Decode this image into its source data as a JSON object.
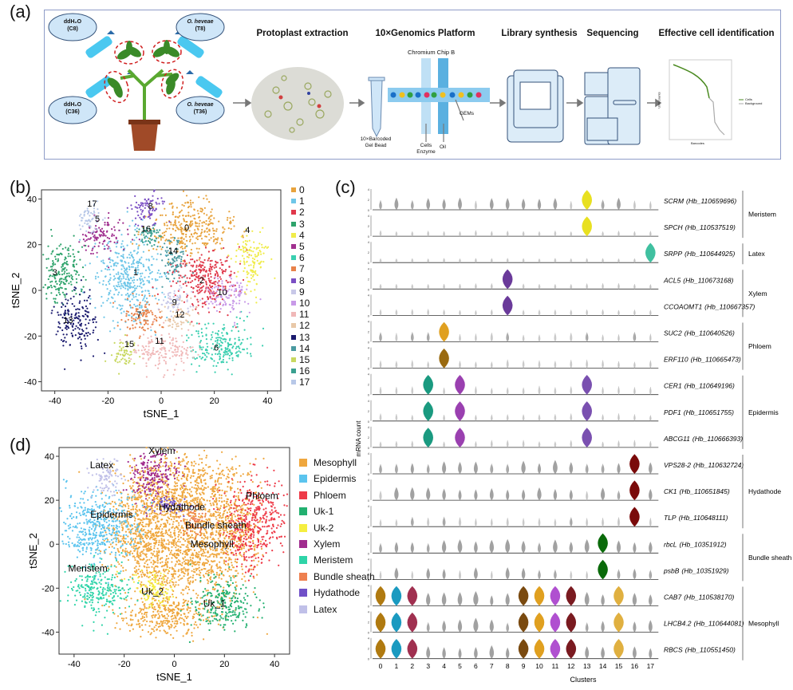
{
  "figure": {
    "panel_labels": {
      "a": "(a)",
      "b": "(b)",
      "c": "(c)",
      "d": "(d)"
    }
  },
  "panel_a": {
    "treatments": [
      {
        "line1": "ddH₂O",
        "line2": "(C8)"
      },
      {
        "line1": "O. heveae",
        "line2": "(T8)"
      },
      {
        "line1": "ddH₂O",
        "line2": "(C36)"
      },
      {
        "line1": "O. heveae",
        "line2": "(T36)"
      }
    ],
    "steps": [
      "Protoplast extraction",
      "10×Genomics Platform",
      "Library synthesis",
      "Sequencing",
      "Effective cell identification"
    ],
    "gel_bead_label": [
      "10×Barcoded",
      "Gel Bead"
    ],
    "chip_label": "Chromium Chip B",
    "cells_label": [
      "Cells",
      "Enzyme"
    ],
    "oil_label": "Oil",
    "gems_label": "GEMs",
    "mini_chart": {
      "xlabel": "Barcodes",
      "ylabel": "UMI counts",
      "legend": [
        "Cells",
        "Background"
      ],
      "colors": [
        "#4a8a20",
        "#aaaaaa"
      ]
    }
  },
  "chart_data": [
    {
      "id": "b",
      "type": "scatter",
      "xlabel": "tSNE_1",
      "ylabel": "tSNE_2",
      "xlim": [
        -45,
        45
      ],
      "ylim": [
        -44,
        44
      ],
      "xticks": [
        -40,
        -20,
        0,
        20,
        40
      ],
      "yticks": [
        -40,
        -20,
        0,
        20,
        40
      ],
      "grid": false,
      "legend_position": "right",
      "clusters": [
        {
          "id": "0",
          "color": "#E8A33D",
          "x": 10,
          "y": 27,
          "sx": 8,
          "sy": 6,
          "label_x": 9.6,
          "label_y": 27.6
        },
        {
          "id": "1",
          "color": "#6EC6E8",
          "x": -12,
          "y": 5,
          "sx": 6,
          "sy": 10,
          "label_x": -9.6,
          "label_y": 8
        },
        {
          "id": "2",
          "color": "#E0384A",
          "x": 16,
          "y": 5,
          "sx": 6,
          "sy": 7,
          "label_x": 15.3,
          "label_y": 4.5
        },
        {
          "id": "3",
          "color": "#2EA36B",
          "x": -37,
          "y": 8,
          "sx": 4,
          "sy": 7,
          "label_x": -40,
          "label_y": 8
        },
        {
          "id": "4",
          "color": "#F0EC4A",
          "x": 34,
          "y": 14,
          "sx": 3,
          "sy": 6,
          "label_x": 32.5,
          "label_y": 26.6
        },
        {
          "id": "5",
          "color": "#A0308F",
          "x": -22,
          "y": 24,
          "sx": 4,
          "sy": 4,
          "label_x": -24,
          "label_y": 31.5
        },
        {
          "id": "6",
          "color": "#3ACFB0",
          "x": 22,
          "y": -24,
          "sx": 6,
          "sy": 5,
          "label_x": 20.7,
          "label_y": -25
        },
        {
          "id": "7",
          "color": "#E8824A",
          "x": -7,
          "y": -12,
          "sx": 4,
          "sy": 4,
          "label_x": -8.3,
          "label_y": -10.5
        },
        {
          "id": "8",
          "color": "#7B4FC4",
          "x": -5,
          "y": 36,
          "sx": 3,
          "sy": 4,
          "label_x": -4,
          "label_y": 37
        },
        {
          "id": "9",
          "color": "#C8C8E8",
          "x": 5,
          "y": -5,
          "sx": 3,
          "sy": 3,
          "label_x": 5,
          "label_y": -5
        },
        {
          "id": "10",
          "color": "#C89AE8",
          "x": 25,
          "y": -2,
          "sx": 4,
          "sy": 4,
          "label_x": 23,
          "label_y": -0.7
        },
        {
          "id": "11",
          "color": "#F0B8B8",
          "x": 0,
          "y": -26,
          "sx": 6,
          "sy": 4,
          "label_x": -0.6,
          "label_y": -22
        },
        {
          "id": "12",
          "color": "#E8C8A8",
          "x": 7,
          "y": -12,
          "sx": 3,
          "sy": 3,
          "label_x": 7,
          "label_y": -10.5
        },
        {
          "id": "13",
          "color": "#1A1A6E",
          "x": -32,
          "y": -14,
          "sx": 4,
          "sy": 6,
          "label_x": -35,
          "label_y": -13
        },
        {
          "id": "14",
          "color": "#4A9AA0",
          "x": 5,
          "y": 14,
          "sx": 2.5,
          "sy": 5,
          "label_x": 4.5,
          "label_y": 17.5
        },
        {
          "id": "15",
          "color": "#C8D860",
          "x": -14,
          "y": -28,
          "sx": 2.5,
          "sy": 3,
          "label_x": -12,
          "label_y": -23.4
        },
        {
          "id": "16",
          "color": "#3AA090",
          "x": -4,
          "y": 24,
          "sx": 2,
          "sy": 2,
          "label_x": -5.7,
          "label_y": 27
        },
        {
          "id": "17",
          "color": "#B8C8E8",
          "x": -27,
          "y": 32,
          "sx": 2,
          "sy": 3.5,
          "label_x": -26,
          "label_y": 38
        }
      ]
    },
    {
      "id": "c",
      "type": "violin",
      "xlabel": "Clusters",
      "ylabel": "mRNA count",
      "categories": [
        "0",
        "1",
        "2",
        "3",
        "4",
        "5",
        "6",
        "7",
        "8",
        "9",
        "10",
        "11",
        "12",
        "13",
        "14",
        "15",
        "16",
        "17"
      ],
      "y_ticks": [
        "0",
        "2",
        "4"
      ],
      "genes": [
        {
          "gene": "SCRM",
          "id": "(Hb_110659696)",
          "group": "Meristem",
          "background_expression": 0.4,
          "highlights": {
            "13": "#E8E020"
          }
        },
        {
          "gene": "SPCH",
          "id": "(Hb_110537519)",
          "group": "Meristem",
          "background_expression": 0.12,
          "highlights": {
            "13": "#E8E020"
          }
        },
        {
          "gene": "SRPP",
          "id": "(Hb_110644925)",
          "group": "Latex",
          "background_expression": 0.06,
          "highlights": {
            "17": "#40C0A0"
          }
        },
        {
          "gene": "ACL5",
          "id": "(Hb_110673168)",
          "group": "Xylem",
          "background_expression": 0.12,
          "highlights": {
            "8": "#6A3A9A"
          }
        },
        {
          "gene": "CCOAOMT1",
          "id": "(Hb_110667357)",
          "group": "Xylem",
          "background_expression": 0.15,
          "highlights": {
            "8": "#6A3A9A"
          }
        },
        {
          "gene": "SUC2",
          "id": "(Hb_110640526)",
          "group": "Phloem",
          "background_expression": 0.3,
          "highlights": {
            "4": "#E0A020"
          }
        },
        {
          "gene": "ERF110",
          "id": "(Hb_110665473)",
          "group": "Phloem",
          "background_expression": 0.25,
          "highlights": {
            "4": "#9A6A10"
          }
        },
        {
          "gene": "CER1",
          "id": "(Hb_110649196)",
          "group": "Epidermis",
          "background_expression": 0.25,
          "highlights": {
            "3": "#1A9A80",
            "5": "#9A40B0",
            "13": "#7A50B0"
          }
        },
        {
          "gene": "PDF1",
          "id": "(Hb_110651755)",
          "group": "Epidermis",
          "background_expression": 0.2,
          "highlights": {
            "3": "#1A9A80",
            "5": "#9A40B0",
            "13": "#7A50B0"
          }
        },
        {
          "gene": "ABCG11",
          "id": "(Hb_110666393)",
          "group": "Epidermis",
          "background_expression": 0.2,
          "highlights": {
            "3": "#1A9A80",
            "5": "#9A40B0",
            "13": "#7A50B0"
          }
        },
        {
          "gene": "VPS28-2",
          "id": "(Hb_110632724)",
          "group": "Hydathode",
          "background_expression": 0.5,
          "highlights": {
            "16": "#7A0A0A"
          }
        },
        {
          "gene": "CK1",
          "id": "(Hb_110651845)",
          "group": "Hydathode",
          "background_expression": 0.45,
          "highlights": {
            "16": "#7A0A0A"
          }
        },
        {
          "gene": "TLP",
          "id": "(Hb_110648111)",
          "group": "Hydathode",
          "background_expression": 0.3,
          "highlights": {
            "16": "#7A0A0A"
          }
        },
        {
          "gene": "rbcL",
          "id": "(Hb_10351912)",
          "group": "Bundle sheath",
          "background_expression": 0.5,
          "highlights": {
            "14": "#0A6A0A"
          }
        },
        {
          "gene": "psbB",
          "id": "(Hb_10351929)",
          "group": "Bundle sheath",
          "background_expression": 0.4,
          "highlights": {
            "14": "#0A6A0A"
          }
        },
        {
          "gene": "CAB7",
          "id": "(Hb_110538170)",
          "group": "Mesophyll",
          "background_expression": 0.55,
          "highlights": {
            "0": "#B07A10",
            "1": "#1A9AC0",
            "2": "#A03050",
            "9": "#7A4A10",
            "10": "#E0A020",
            "11": "#B050D0",
            "12": "#7A1A20",
            "15": "#E0B040"
          }
        },
        {
          "gene": "LHCB4.2",
          "id": "(Hb_110644081)",
          "group": "Mesophyll",
          "background_expression": 0.5,
          "highlights": {
            "0": "#B07A10",
            "1": "#1A9AC0",
            "2": "#A03050",
            "9": "#7A4A10",
            "10": "#E0A020",
            "11": "#B050D0",
            "12": "#7A1A20",
            "15": "#E0B040"
          }
        },
        {
          "gene": "RBCS",
          "id": "(Hb_110551450)",
          "group": "Mesophyll",
          "background_expression": 0.55,
          "highlights": {
            "0": "#B07A10",
            "1": "#1A9AC0",
            "2": "#A03050",
            "9": "#7A4A10",
            "10": "#E0A020",
            "11": "#B050D0",
            "12": "#7A1A20",
            "15": "#E0B040"
          }
        }
      ],
      "groups": [
        "Meristem",
        "Latex",
        "Xylem",
        "Phloem",
        "Epidermis",
        "Hydathode",
        "Bundle sheath",
        "Mesophyll"
      ]
    },
    {
      "id": "d",
      "type": "scatter",
      "xlabel": "tSNE_1",
      "ylabel": "tSNE_2",
      "xlim": [
        -46,
        46
      ],
      "ylim": [
        -50,
        44
      ],
      "xticks": [
        -40,
        -20,
        0,
        20,
        40
      ],
      "yticks": [
        -40,
        -20,
        0,
        20,
        40
      ],
      "grid": false,
      "legend_position": "right",
      "cell_types": [
        {
          "name": "Mesophyll",
          "color": "#EFA73E",
          "blobs": [
            [
              5,
              25,
              12,
              8
            ],
            [
              -12,
              5,
              8,
              12
            ],
            [
              5,
              -5,
              10,
              10
            ],
            [
              -2,
              -32,
              10,
              5
            ],
            [
              22,
              5,
              6,
              10
            ]
          ]
        },
        {
          "name": "Epidermis",
          "color": "#5BC4EE",
          "blobs": [
            [
              -30,
              8,
              8,
              8
            ]
          ]
        },
        {
          "name": "Phloem",
          "color": "#EE3A48",
          "blobs": [
            [
              32,
              10,
              6,
              10
            ]
          ]
        },
        {
          "name": "Uk-1",
          "color": "#22B070",
          "blobs": [
            [
              20,
              -27,
              6,
              6
            ]
          ]
        },
        {
          "name": "Uk-2",
          "color": "#F5EE40",
          "blobs": [
            [
              -8,
              -20,
              4,
              4
            ]
          ]
        },
        {
          "name": "Xylem",
          "color": "#A02C8E",
          "blobs": [
            [
              -8,
              32,
              5,
              6
            ]
          ]
        },
        {
          "name": "Meristem",
          "color": "#2ED4A8",
          "blobs": [
            [
              -30,
              -20,
              6,
              6
            ]
          ]
        },
        {
          "name": "Bundle sheath",
          "color": "#EE8050",
          "blobs": [
            [
              8,
              10,
              2.5,
              4
            ]
          ]
        },
        {
          "name": "Hydathode",
          "color": "#7050C8",
          "blobs": [
            [
              -2,
              18,
              3,
              2
            ]
          ]
        },
        {
          "name": "Latex",
          "color": "#C0C0E8",
          "blobs": [
            [
              -27,
              30,
              3,
              4
            ]
          ]
        }
      ],
      "annotations": [
        {
          "text": "Latex",
          "x": -29,
          "y": 36
        },
        {
          "text": "Xylem",
          "x": -5,
          "y": 42.6
        },
        {
          "text": "Hydathode",
          "x": 3,
          "y": 17
        },
        {
          "text": "Phloem",
          "x": 35,
          "y": 22
        },
        {
          "text": "Epidermis",
          "x": -25,
          "y": 13.5
        },
        {
          "text": "Bundle sheath",
          "x": 16.5,
          "y": 8.7
        },
        {
          "text": "Mesophyll",
          "x": 15,
          "y": 0
        },
        {
          "text": "Meristem",
          "x": -34.5,
          "y": -11
        },
        {
          "text": "Uk_2",
          "x": -8.7,
          "y": -21.5
        },
        {
          "text": "Uk_1",
          "x": 16,
          "y": -27
        }
      ]
    }
  ]
}
